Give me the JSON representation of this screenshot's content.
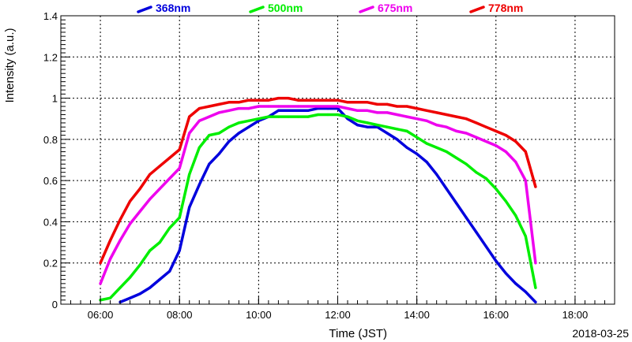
{
  "chart_data": {
    "type": "line",
    "title": "",
    "xlabel": "Time (JST)",
    "ylabel": "Intensity (a.u.)",
    "date_label": "2018-03-25",
    "x_ticks": [
      "06:00",
      "08:00",
      "10:00",
      "12:00",
      "14:00",
      "16:00",
      "18:00"
    ],
    "y_ticks": [
      "0",
      "0.2",
      "0.4",
      "0.6",
      "0.8",
      "1",
      "1.2",
      "1.4"
    ],
    "xlim": [
      "05:00",
      "19:00"
    ],
    "ylim": [
      0,
      1.4
    ],
    "grid": true,
    "legend_position": "top",
    "series": [
      {
        "name": "368nm",
        "color": "#0000dd",
        "x": [
          "06:30",
          "06:45",
          "07:00",
          "07:15",
          "07:30",
          "07:45",
          "08:00",
          "08:15",
          "08:30",
          "08:45",
          "09:00",
          "09:15",
          "09:30",
          "09:45",
          "10:00",
          "10:15",
          "10:30",
          "10:45",
          "11:00",
          "11:15",
          "11:30",
          "11:45",
          "12:00",
          "12:15",
          "12:30",
          "12:45",
          "13:00",
          "13:15",
          "13:30",
          "13:45",
          "14:00",
          "14:15",
          "14:30",
          "14:45",
          "15:00",
          "15:15",
          "15:30",
          "15:45",
          "16:00",
          "16:15",
          "16:30",
          "16:45",
          "17:00"
        ],
        "y": [
          0.01,
          0.03,
          0.05,
          0.08,
          0.12,
          0.16,
          0.26,
          0.47,
          0.58,
          0.68,
          0.73,
          0.79,
          0.83,
          0.86,
          0.89,
          0.91,
          0.94,
          0.94,
          0.94,
          0.94,
          0.95,
          0.95,
          0.95,
          0.9,
          0.87,
          0.86,
          0.86,
          0.83,
          0.8,
          0.76,
          0.73,
          0.69,
          0.63,
          0.56,
          0.49,
          0.42,
          0.35,
          0.28,
          0.21,
          0.15,
          0.1,
          0.06,
          0.01
        ]
      },
      {
        "name": "500nm",
        "color": "#00ee00",
        "x": [
          "06:00",
          "06:15",
          "06:30",
          "06:45",
          "07:00",
          "07:15",
          "07:30",
          "07:45",
          "08:00",
          "08:15",
          "08:30",
          "08:45",
          "09:00",
          "09:15",
          "09:30",
          "09:45",
          "10:00",
          "10:15",
          "10:30",
          "10:45",
          "11:00",
          "11:15",
          "11:30",
          "11:45",
          "12:00",
          "12:15",
          "12:30",
          "12:45",
          "13:00",
          "13:15",
          "13:30",
          "13:45",
          "14:00",
          "14:15",
          "14:30",
          "14:45",
          "15:00",
          "15:15",
          "15:30",
          "15:45",
          "16:00",
          "16:15",
          "16:30",
          "16:45",
          "17:00"
        ],
        "y": [
          0.02,
          0.03,
          0.08,
          0.13,
          0.19,
          0.26,
          0.3,
          0.37,
          0.42,
          0.63,
          0.76,
          0.82,
          0.83,
          0.86,
          0.88,
          0.89,
          0.9,
          0.91,
          0.91,
          0.91,
          0.91,
          0.91,
          0.92,
          0.92,
          0.92,
          0.91,
          0.89,
          0.88,
          0.87,
          0.86,
          0.85,
          0.84,
          0.81,
          0.78,
          0.76,
          0.74,
          0.71,
          0.68,
          0.64,
          0.61,
          0.56,
          0.5,
          0.43,
          0.33,
          0.08
        ]
      },
      {
        "name": "675nm",
        "color": "#ee00ee",
        "x": [
          "06:00",
          "06:15",
          "06:30",
          "06:45",
          "07:00",
          "07:15",
          "07:30",
          "07:45",
          "08:00",
          "08:15",
          "08:30",
          "08:45",
          "09:00",
          "09:15",
          "09:30",
          "09:45",
          "10:00",
          "10:15",
          "10:30",
          "10:45",
          "11:00",
          "11:15",
          "11:30",
          "11:45",
          "12:00",
          "12:15",
          "12:30",
          "12:45",
          "13:00",
          "13:15",
          "13:30",
          "13:45",
          "14:00",
          "14:15",
          "14:30",
          "14:45",
          "15:00",
          "15:15",
          "15:30",
          "15:45",
          "16:00",
          "16:15",
          "16:30",
          "16:45",
          "17:00"
        ],
        "y": [
          0.1,
          0.22,
          0.31,
          0.39,
          0.45,
          0.51,
          0.56,
          0.61,
          0.66,
          0.83,
          0.89,
          0.91,
          0.93,
          0.94,
          0.95,
          0.95,
          0.96,
          0.96,
          0.96,
          0.96,
          0.96,
          0.96,
          0.96,
          0.96,
          0.96,
          0.95,
          0.94,
          0.94,
          0.93,
          0.93,
          0.92,
          0.91,
          0.9,
          0.89,
          0.87,
          0.86,
          0.84,
          0.83,
          0.81,
          0.79,
          0.77,
          0.74,
          0.69,
          0.6,
          0.2
        ]
      },
      {
        "name": "778nm",
        "color": "#ee0000",
        "x": [
          "06:00",
          "06:15",
          "06:30",
          "06:45",
          "07:00",
          "07:15",
          "07:30",
          "07:45",
          "08:00",
          "08:15",
          "08:30",
          "08:45",
          "09:00",
          "09:15",
          "09:30",
          "09:45",
          "10:00",
          "10:15",
          "10:30",
          "10:45",
          "11:00",
          "11:15",
          "11:30",
          "11:45",
          "12:00",
          "12:15",
          "12:30",
          "12:45",
          "13:00",
          "13:15",
          "13:30",
          "13:45",
          "14:00",
          "14:15",
          "14:30",
          "14:45",
          "15:00",
          "15:15",
          "15:30",
          "15:45",
          "16:00",
          "16:15",
          "16:30",
          "16:45",
          "17:00"
        ],
        "y": [
          0.2,
          0.31,
          0.41,
          0.5,
          0.56,
          0.63,
          0.67,
          0.71,
          0.75,
          0.91,
          0.95,
          0.96,
          0.97,
          0.98,
          0.98,
          0.99,
          0.99,
          0.99,
          1.0,
          1.0,
          0.99,
          0.99,
          0.99,
          0.99,
          0.99,
          0.98,
          0.98,
          0.98,
          0.97,
          0.97,
          0.96,
          0.96,
          0.95,
          0.94,
          0.93,
          0.92,
          0.91,
          0.9,
          0.88,
          0.86,
          0.84,
          0.82,
          0.79,
          0.74,
          0.57
        ]
      }
    ]
  }
}
